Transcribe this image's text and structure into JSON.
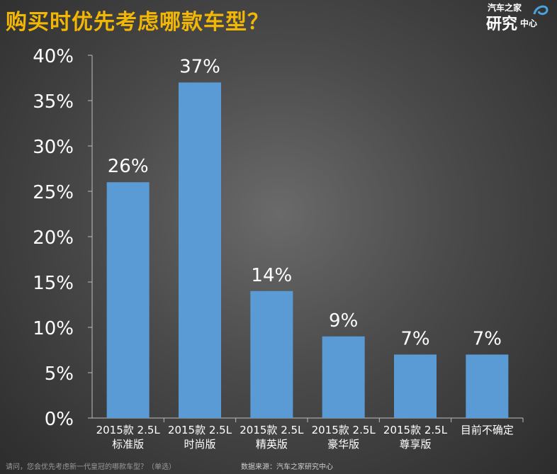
{
  "header": {
    "title": "购买时优先考虑哪款车型？",
    "logo_top": "汽车之家",
    "logo_main": "研究",
    "logo_sub": "中心"
  },
  "footer": {
    "question": "请问，您会优先考虑新一代皇冠的哪款车型？（单选）",
    "source": "数据来源：汽车之家研究中心"
  },
  "colors": {
    "bar": "#5b9bd5",
    "title": "#f2b705",
    "text": "#ffffff"
  },
  "chart_data": {
    "type": "bar",
    "title": "购买时优先考虑哪款车型？",
    "xlabel": "",
    "ylabel": "",
    "ylim": [
      0,
      40
    ],
    "yticks": [
      "0%",
      "5%",
      "10%",
      "15%",
      "20%",
      "25%",
      "30%",
      "35%",
      "40%"
    ],
    "categories": [
      [
        "2015款 2.5L",
        "标准版"
      ],
      [
        "2015款 2.5L",
        "时尚版"
      ],
      [
        "2015款 2.5L",
        "精英版"
      ],
      [
        "2015款 2.5L",
        "豪华版"
      ],
      [
        "2015款 2.5L",
        "尊享版"
      ],
      [
        "目前不确定"
      ]
    ],
    "values": [
      26,
      37,
      14,
      9,
      7,
      7
    ],
    "data_labels": [
      "26%",
      "37%",
      "14%",
      "9%",
      "7%",
      "7%"
    ],
    "grid": false,
    "legend": "none"
  }
}
